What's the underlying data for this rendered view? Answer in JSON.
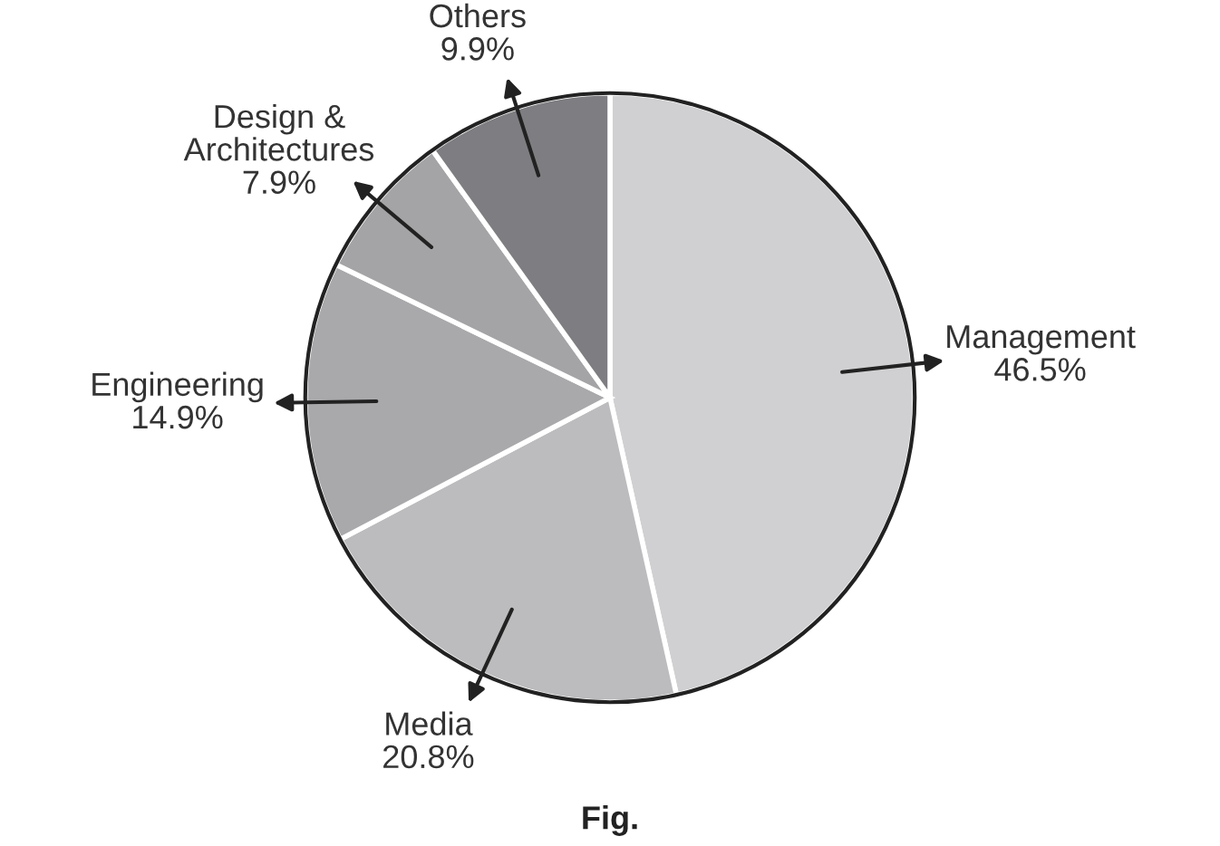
{
  "chart_data": {
    "type": "pie",
    "categories": [
      "Management",
      "Media",
      "Engineering",
      "Design &\nArchitectures",
      "Others"
    ],
    "values": [
      46.5,
      20.8,
      14.9,
      7.9,
      9.9
    ],
    "value_labels": [
      "46.5%",
      "20.8%",
      "14.9%",
      "7.9%",
      "9.9%"
    ],
    "colors": [
      "#d0d0d2",
      "#bcbcbe",
      "#a9a9ab",
      "#a4a4a6",
      "#7e7e82"
    ],
    "annotations": [
      "Fig."
    ]
  }
}
